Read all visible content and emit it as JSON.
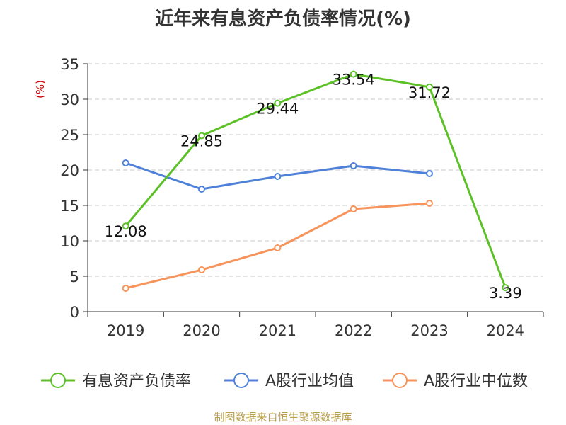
{
  "chart_data": {
    "type": "line",
    "title": "近年来有息资产负债率情况(%)",
    "ylabel": "(%)",
    "categories": [
      "2019",
      "2020",
      "2021",
      "2022",
      "2023",
      "2024"
    ],
    "yticks": [
      "0",
      "5",
      "10",
      "15",
      "20",
      "25",
      "30",
      "35"
    ],
    "ylim": [
      0,
      35
    ],
    "grid": true,
    "legend_position": "bottom",
    "series": [
      {
        "name": "有息资产负债率",
        "color": "#5cc126",
        "values": [
          12.08,
          24.85,
          29.44,
          33.54,
          31.72,
          3.39
        ],
        "labels": [
          "12.08",
          "24.85",
          "29.44",
          "33.54",
          "31.72",
          "3.39"
        ]
      },
      {
        "name": "A股行业均值",
        "color": "#4f81d8",
        "values": [
          21.0,
          17.3,
          19.1,
          20.6,
          19.5,
          null
        ]
      },
      {
        "name": "A股行业中位数",
        "color": "#f7945c",
        "values": [
          3.3,
          5.9,
          9.0,
          14.5,
          15.3,
          null
        ]
      }
    ]
  },
  "footer": "制图数据来自恒生聚源数据库"
}
